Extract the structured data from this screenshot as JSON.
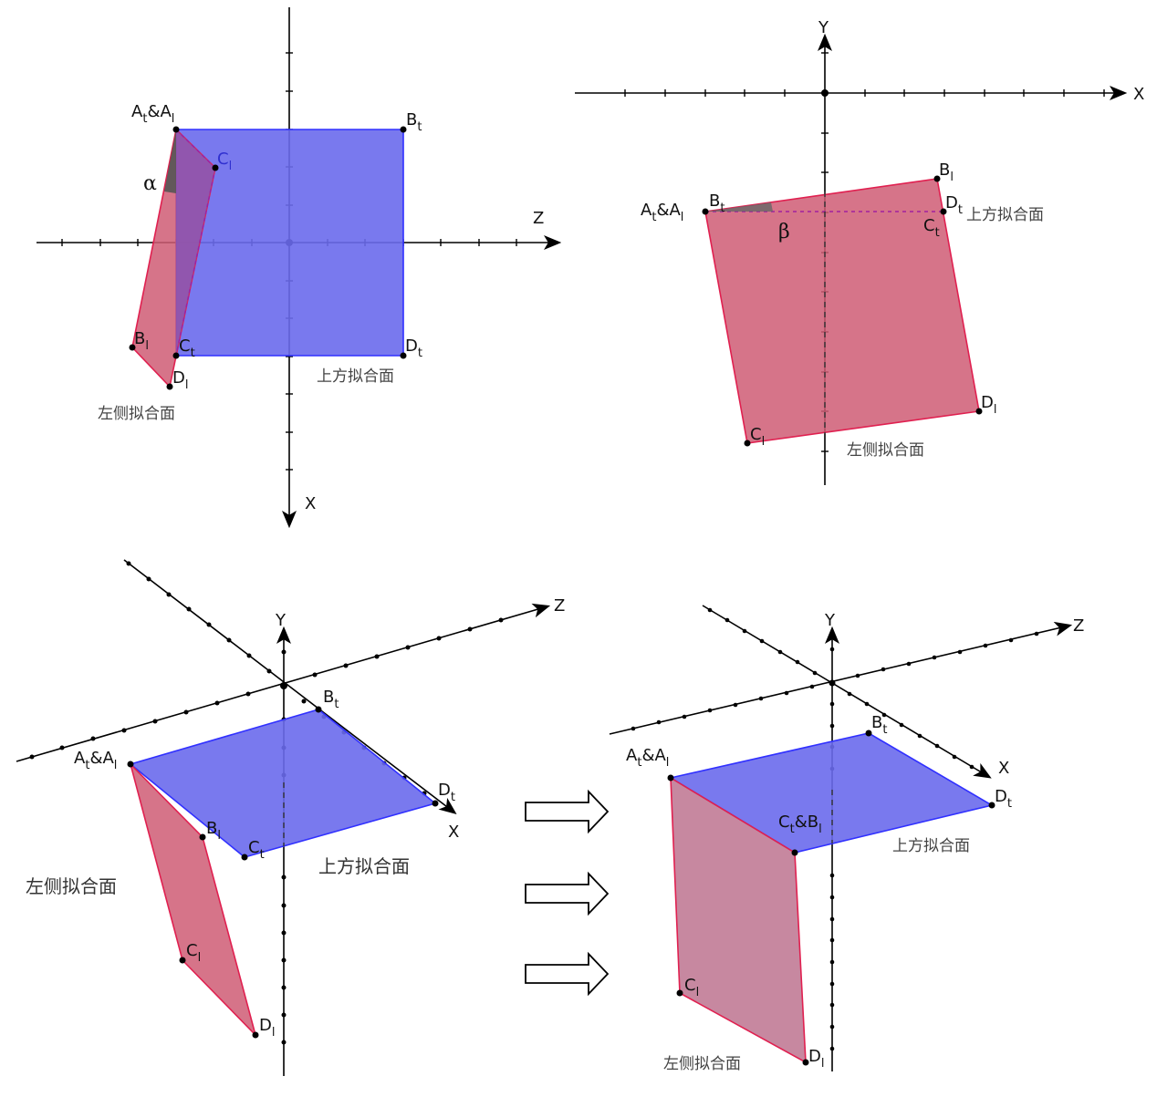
{
  "panels": {
    "top_left": {
      "axes": {
        "z": "Z",
        "x": "X"
      },
      "angle": "α",
      "points": {
        "atal": {
          "main": "A",
          "sub1": "t",
          "amp": "&A",
          "sub2": "l"
        },
        "bt": {
          "main": "B",
          "sub": "t"
        },
        "cl": {
          "main": "C",
          "sub": "l"
        },
        "bl": {
          "main": "B",
          "sub": "l"
        },
        "ct": {
          "main": "C",
          "sub": "t"
        },
        "dt": {
          "main": "D",
          "sub": "t"
        },
        "dl": {
          "main": "D",
          "sub": "l"
        }
      },
      "plane_top": "上方拟合面",
      "plane_left": "左侧拟合面"
    },
    "top_right": {
      "axes": {
        "y": "Y",
        "x": "X"
      },
      "angle": "β",
      "points": {
        "atal": {
          "main": "A",
          "sub1": "t",
          "amp": "&A",
          "sub2": "l"
        },
        "bt": {
          "main": "B",
          "sub": "t"
        },
        "bl": {
          "main": "B",
          "sub": "l"
        },
        "dt": {
          "main": "D",
          "sub": "t"
        },
        "ct": {
          "main": "C",
          "sub": "t"
        },
        "cl": {
          "main": "C",
          "sub": "l"
        },
        "dl": {
          "main": "D",
          "sub": "l"
        }
      },
      "plane_top": "上方拟合面",
      "plane_left": "左侧拟合面"
    },
    "bottom_left": {
      "axes": {
        "y": "Y",
        "z": "Z",
        "x": "X"
      },
      "points": {
        "atal": {
          "main": "A",
          "sub1": "t",
          "amp": "&A",
          "sub2": "l"
        },
        "bt": {
          "main": "B",
          "sub": "t"
        },
        "dt": {
          "main": "D",
          "sub": "t"
        },
        "bl": {
          "main": "B",
          "sub": "l"
        },
        "ct": {
          "main": "C",
          "sub": "t"
        },
        "cl": {
          "main": "C",
          "sub": "l"
        },
        "dl": {
          "main": "D",
          "sub": "l"
        }
      },
      "plane_top": "上方拟合面",
      "plane_left": "左侧拟合面"
    },
    "bottom_right": {
      "axes": {
        "y": "Y",
        "z": "Z",
        "x": "X"
      },
      "points": {
        "atal": {
          "main": "A",
          "sub1": "t",
          "amp": "&A",
          "sub2": "l"
        },
        "bt": {
          "main": "B",
          "sub": "t"
        },
        "ctbl": {
          "main": "C",
          "sub1": "t",
          "amp": "&B",
          "sub2": "l"
        },
        "dt": {
          "main": "D",
          "sub": "t"
        },
        "cl": {
          "main": "C",
          "sub": "l"
        },
        "dl": {
          "main": "D",
          "sub": "l"
        }
      },
      "plane_top": "上方拟合面",
      "plane_left": "左侧拟合面"
    }
  },
  "colors": {
    "top_plane": "#6a6aec",
    "left_plane": "#cf5c74"
  }
}
